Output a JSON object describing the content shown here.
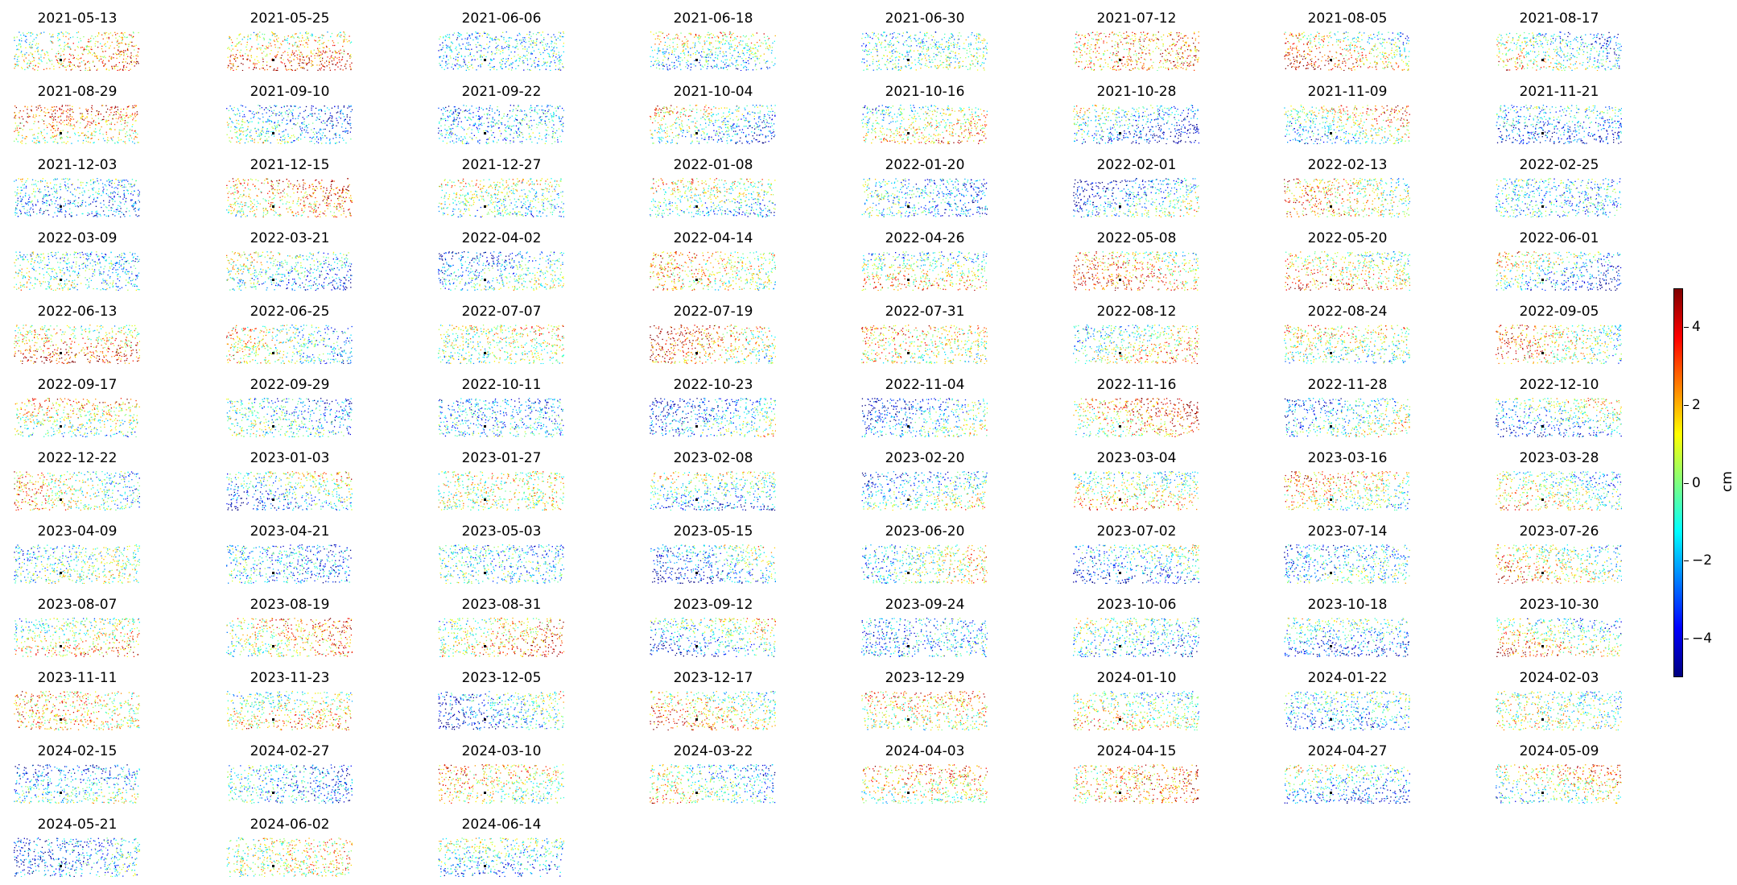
{
  "chart_data": {
    "type": "scatter",
    "title": "",
    "panels": [
      "2021-05-13",
      "2021-05-25",
      "2021-06-06",
      "2021-06-18",
      "2021-06-30",
      "2021-07-12",
      "2021-08-05",
      "2021-08-17",
      "2021-08-29",
      "2021-09-10",
      "2021-09-22",
      "2021-10-04",
      "2021-10-16",
      "2021-10-28",
      "2021-11-09",
      "2021-11-21",
      "2021-12-03",
      "2021-12-15",
      "2021-12-27",
      "2022-01-08",
      "2022-01-20",
      "2022-02-01",
      "2022-02-13",
      "2022-02-25",
      "2022-03-09",
      "2022-03-21",
      "2022-04-02",
      "2022-04-14",
      "2022-04-26",
      "2022-05-08",
      "2022-05-20",
      "2022-06-01",
      "2022-06-13",
      "2022-06-25",
      "2022-07-07",
      "2022-07-19",
      "2022-07-31",
      "2022-08-12",
      "2022-08-24",
      "2022-09-05",
      "2022-09-17",
      "2022-09-29",
      "2022-10-11",
      "2022-10-23",
      "2022-11-04",
      "2022-11-16",
      "2022-11-28",
      "2022-12-10",
      "2022-12-22",
      "2023-01-03",
      "2023-01-27",
      "2023-02-08",
      "2023-02-20",
      "2023-03-04",
      "2023-03-16",
      "2023-03-28",
      "2023-04-09",
      "2023-04-21",
      "2023-05-03",
      "2023-05-15",
      "2023-06-20",
      "2023-07-02",
      "2023-07-14",
      "2023-07-26",
      "2023-08-07",
      "2023-08-19",
      "2023-08-31",
      "2023-09-12",
      "2023-09-24",
      "2023-10-06",
      "2023-10-18",
      "2023-10-30",
      "2023-11-11",
      "2023-11-23",
      "2023-12-05",
      "2023-12-17",
      "2023-12-29",
      "2024-01-10",
      "2024-01-22",
      "2024-02-03",
      "2024-02-15",
      "2024-02-27",
      "2024-03-10",
      "2024-03-22",
      "2024-04-03",
      "2024-04-15",
      "2024-04-27",
      "2024-05-09",
      "2024-05-21",
      "2024-06-02",
      "2024-06-14"
    ],
    "colorbar": {
      "label": "cm",
      "range": [
        -5,
        5
      ],
      "ticks": [
        4,
        2,
        0,
        -2,
        -4
      ],
      "tick_labels": [
        "4",
        "2",
        "0",
        "−2",
        "−4"
      ],
      "colormap": "jet"
    },
    "reference_point": "black dot marker in each panel",
    "colors": {
      "jet": [
        "#00007f",
        "#0000ff",
        "#007fff",
        "#00ffff",
        "#7fff7f",
        "#ffff00",
        "#ff7f00",
        "#ff0000",
        "#7f0000"
      ],
      "reference": "#000000"
    }
  }
}
